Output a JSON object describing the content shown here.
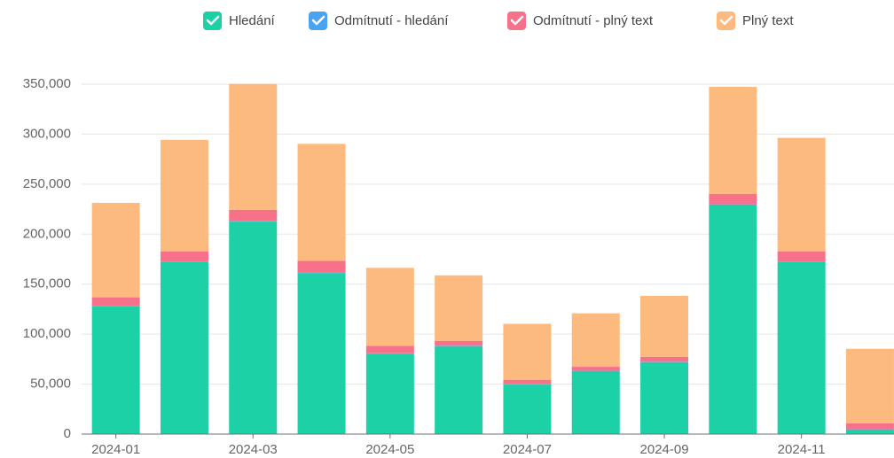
{
  "chart_data": {
    "type": "stacked_bar",
    "categories": [
      "2024-01",
      null,
      "2024-03",
      null,
      "2024-05",
      null,
      "2024-07",
      null,
      "2024-09",
      null,
      "2024-11",
      null
    ],
    "series": [
      {
        "name": "Hledání",
        "color": "#1dd1a7",
        "values": [
          128000,
          172000,
          212500,
          161000,
          80500,
          88000,
          49500,
          63000,
          72000,
          229500,
          172000,
          4500
        ]
      },
      {
        "name": "Odmítnutí - hledání",
        "color": "#4aa3f0",
        "values": [
          300,
          300,
          300,
          300,
          300,
          300,
          300,
          300,
          300,
          300,
          300,
          300
        ]
      },
      {
        "name": "Odmítnutí - plný text",
        "color": "#f7718a",
        "values": [
          8500,
          10500,
          11500,
          12000,
          7500,
          5000,
          4500,
          4000,
          5000,
          10500,
          10500,
          6000
        ]
      },
      {
        "name": "Plný text",
        "color": "#fdba7f",
        "values": [
          94500,
          111500,
          126000,
          117000,
          78000,
          65500,
          56000,
          53500,
          61000,
          107000,
          113500,
          74500
        ]
      }
    ],
    "ylim": [
      0,
      350000
    ],
    "yticks": [
      0,
      {
        "value": 50000,
        "label": "50,000"
      },
      {
        "value": 100000,
        "label": "100,000"
      },
      {
        "value": 150000,
        "label": "150,000"
      },
      {
        "value": 200000,
        "label": "200,000"
      },
      {
        "value": 250000,
        "label": "250,000"
      },
      {
        "value": 300000,
        "label": "300,000"
      },
      {
        "value": 350000,
        "label": "350,000"
      }
    ],
    "grid": true,
    "legend": "top"
  }
}
